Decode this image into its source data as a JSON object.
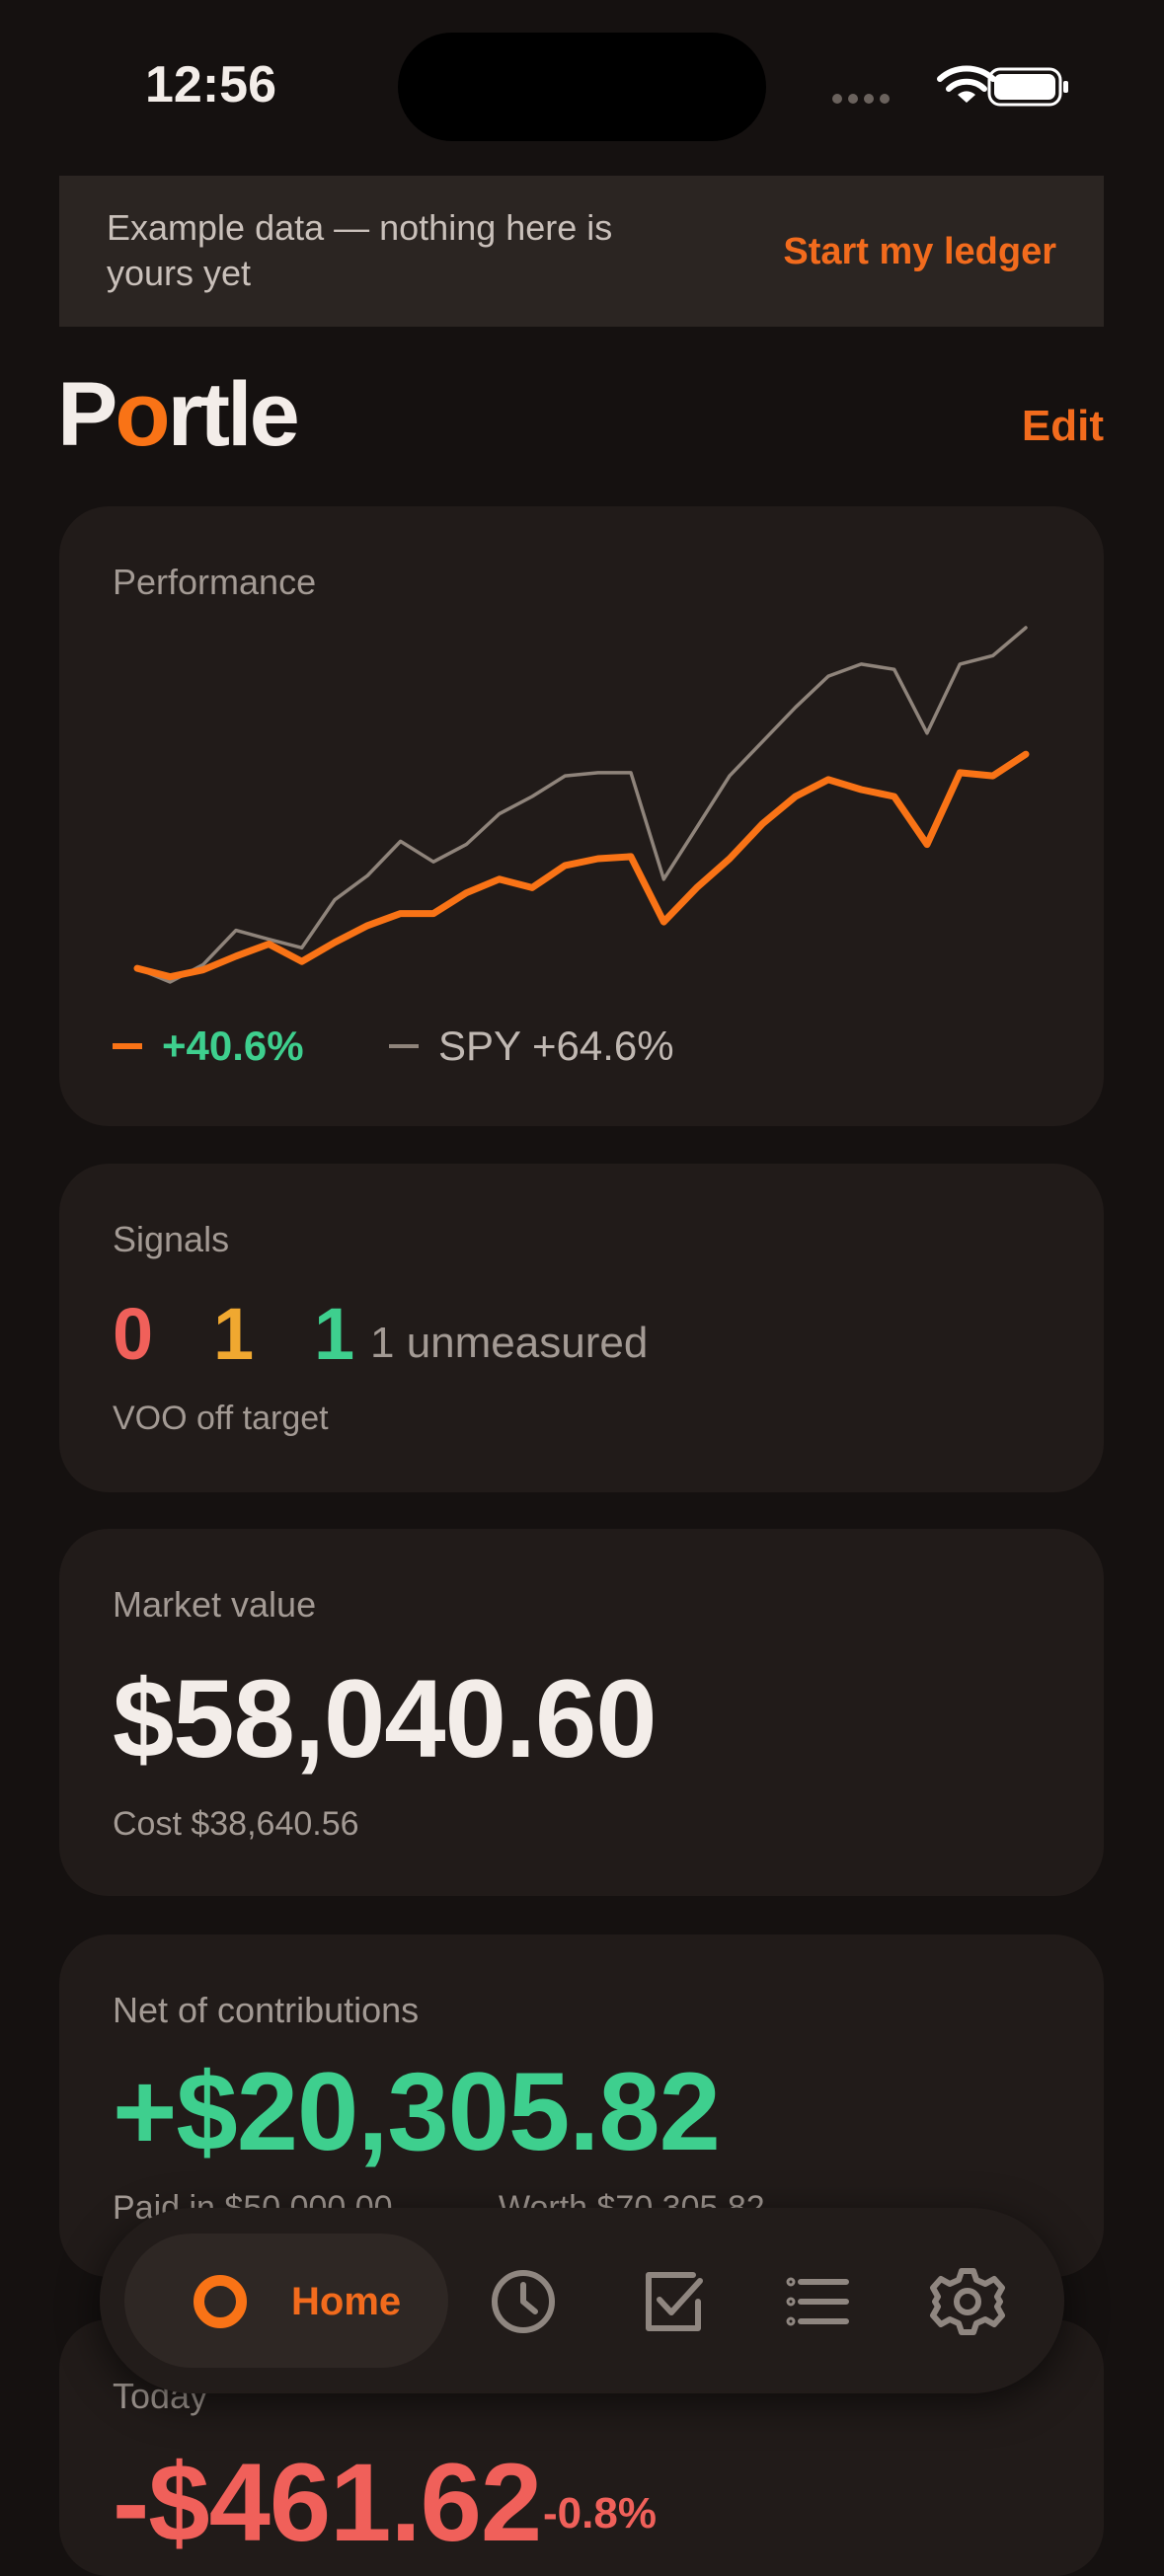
{
  "status_bar": {
    "time": "12:56"
  },
  "banner": {
    "message": "Example data — nothing here is yours yet",
    "action": "Start my ledger"
  },
  "header": {
    "logo": "Portle",
    "edit": "Edit"
  },
  "performance": {
    "title": "Performance",
    "series": [
      {
        "name": "SPY +64.6%",
        "color": "#8f847b",
        "values": [
          0,
          -2.6,
          0.7,
          7.2,
          5.5,
          3.9,
          13.0,
          17.6,
          24.1,
          20.2,
          23.5,
          29.3,
          32.6,
          36.5,
          37.1,
          37.1,
          16.9,
          26.7,
          36.5,
          43.0,
          49.5,
          55.4,
          57.7,
          56.7,
          44.6,
          57.7,
          59.3,
          64.6
        ]
      },
      {
        "name": "+40.6%",
        "color": "#f97316",
        "values": [
          0,
          -1.6,
          -0.3,
          2.3,
          4.6,
          1.3,
          4.9,
          8.1,
          10.4,
          10.4,
          14.3,
          16.9,
          15.3,
          19.5,
          20.8,
          21.2,
          8.8,
          15.3,
          20.8,
          27.4,
          32.6,
          35.8,
          33.9,
          32.6,
          23.5,
          37.1,
          36.5,
          40.6
        ]
      }
    ]
  },
  "signals": {
    "title": "Signals",
    "counts": [
      {
        "value": 0,
        "color": "#f0605a"
      },
      {
        "value": 1,
        "color": "#f0a830"
      },
      {
        "value": 1,
        "color": "#3ecf8e"
      }
    ],
    "unmeasured": "1 unmeasured",
    "note": "VOO off target"
  },
  "market_value": {
    "title": "Market value",
    "value": "$58,040.60",
    "cost": "Cost $38,640.56"
  },
  "net": {
    "title": "Net of contributions",
    "value": "+$20,305.82",
    "paid": "Paid in $50,000.00",
    "worth": "Worth $70,305.82"
  },
  "today": {
    "title": "Today",
    "value": "-$461.62",
    "percent": "-0.8%"
  },
  "nav": {
    "home": "Home"
  }
}
